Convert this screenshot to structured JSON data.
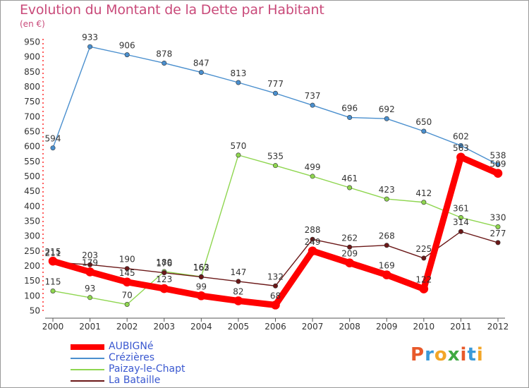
{
  "title": "Evolution du Montant de la Dette par Habitant",
  "unit": "(en €)",
  "logo": {
    "letters": [
      "P",
      "r",
      "o",
      "x",
      "i",
      "t",
      "i"
    ],
    "colors": [
      "#e8592a",
      "#3a9ad9",
      "#f2a628",
      "#3fa942",
      "#e8592a",
      "#3a9ad9",
      "#f2a628"
    ]
  },
  "chart_data": {
    "type": "line",
    "x": [
      "2000",
      "2001",
      "2002",
      "2003",
      "2004",
      "2005",
      "2006",
      "2007",
      "2008",
      "2009",
      "2010",
      "2011",
      "2012"
    ],
    "ylim": [
      50,
      950
    ],
    "yticks": [
      50,
      100,
      150,
      200,
      250,
      300,
      350,
      400,
      450,
      500,
      550,
      600,
      650,
      700,
      750,
      800,
      850,
      900,
      950
    ],
    "grid": false,
    "legend_position": "bottom-left",
    "series": [
      {
        "name": "AUBIGNé",
        "color": "#ff0000",
        "emphasis": true,
        "values": [
          215,
          179,
          145,
          123,
          99,
          82,
          68,
          249,
          209,
          169,
          122,
          563,
          509
        ]
      },
      {
        "name": "Crézières",
        "color": "#4a8fce",
        "values": [
          594,
          933,
          906,
          878,
          847,
          813,
          777,
          737,
          696,
          692,
          650,
          602,
          538
        ]
      },
      {
        "name": "Paizay-le-Chapt",
        "color": "#8fd650",
        "values": [
          115,
          93,
          70,
          180,
          163,
          570,
          535,
          499,
          461,
          423,
          412,
          361,
          330
        ]
      },
      {
        "name": "La Bataille",
        "color": "#6b1818",
        "values": [
          211,
          203,
          190,
          176,
          162,
          147,
          132,
          288,
          262,
          268,
          225,
          314,
          277
        ]
      }
    ]
  }
}
